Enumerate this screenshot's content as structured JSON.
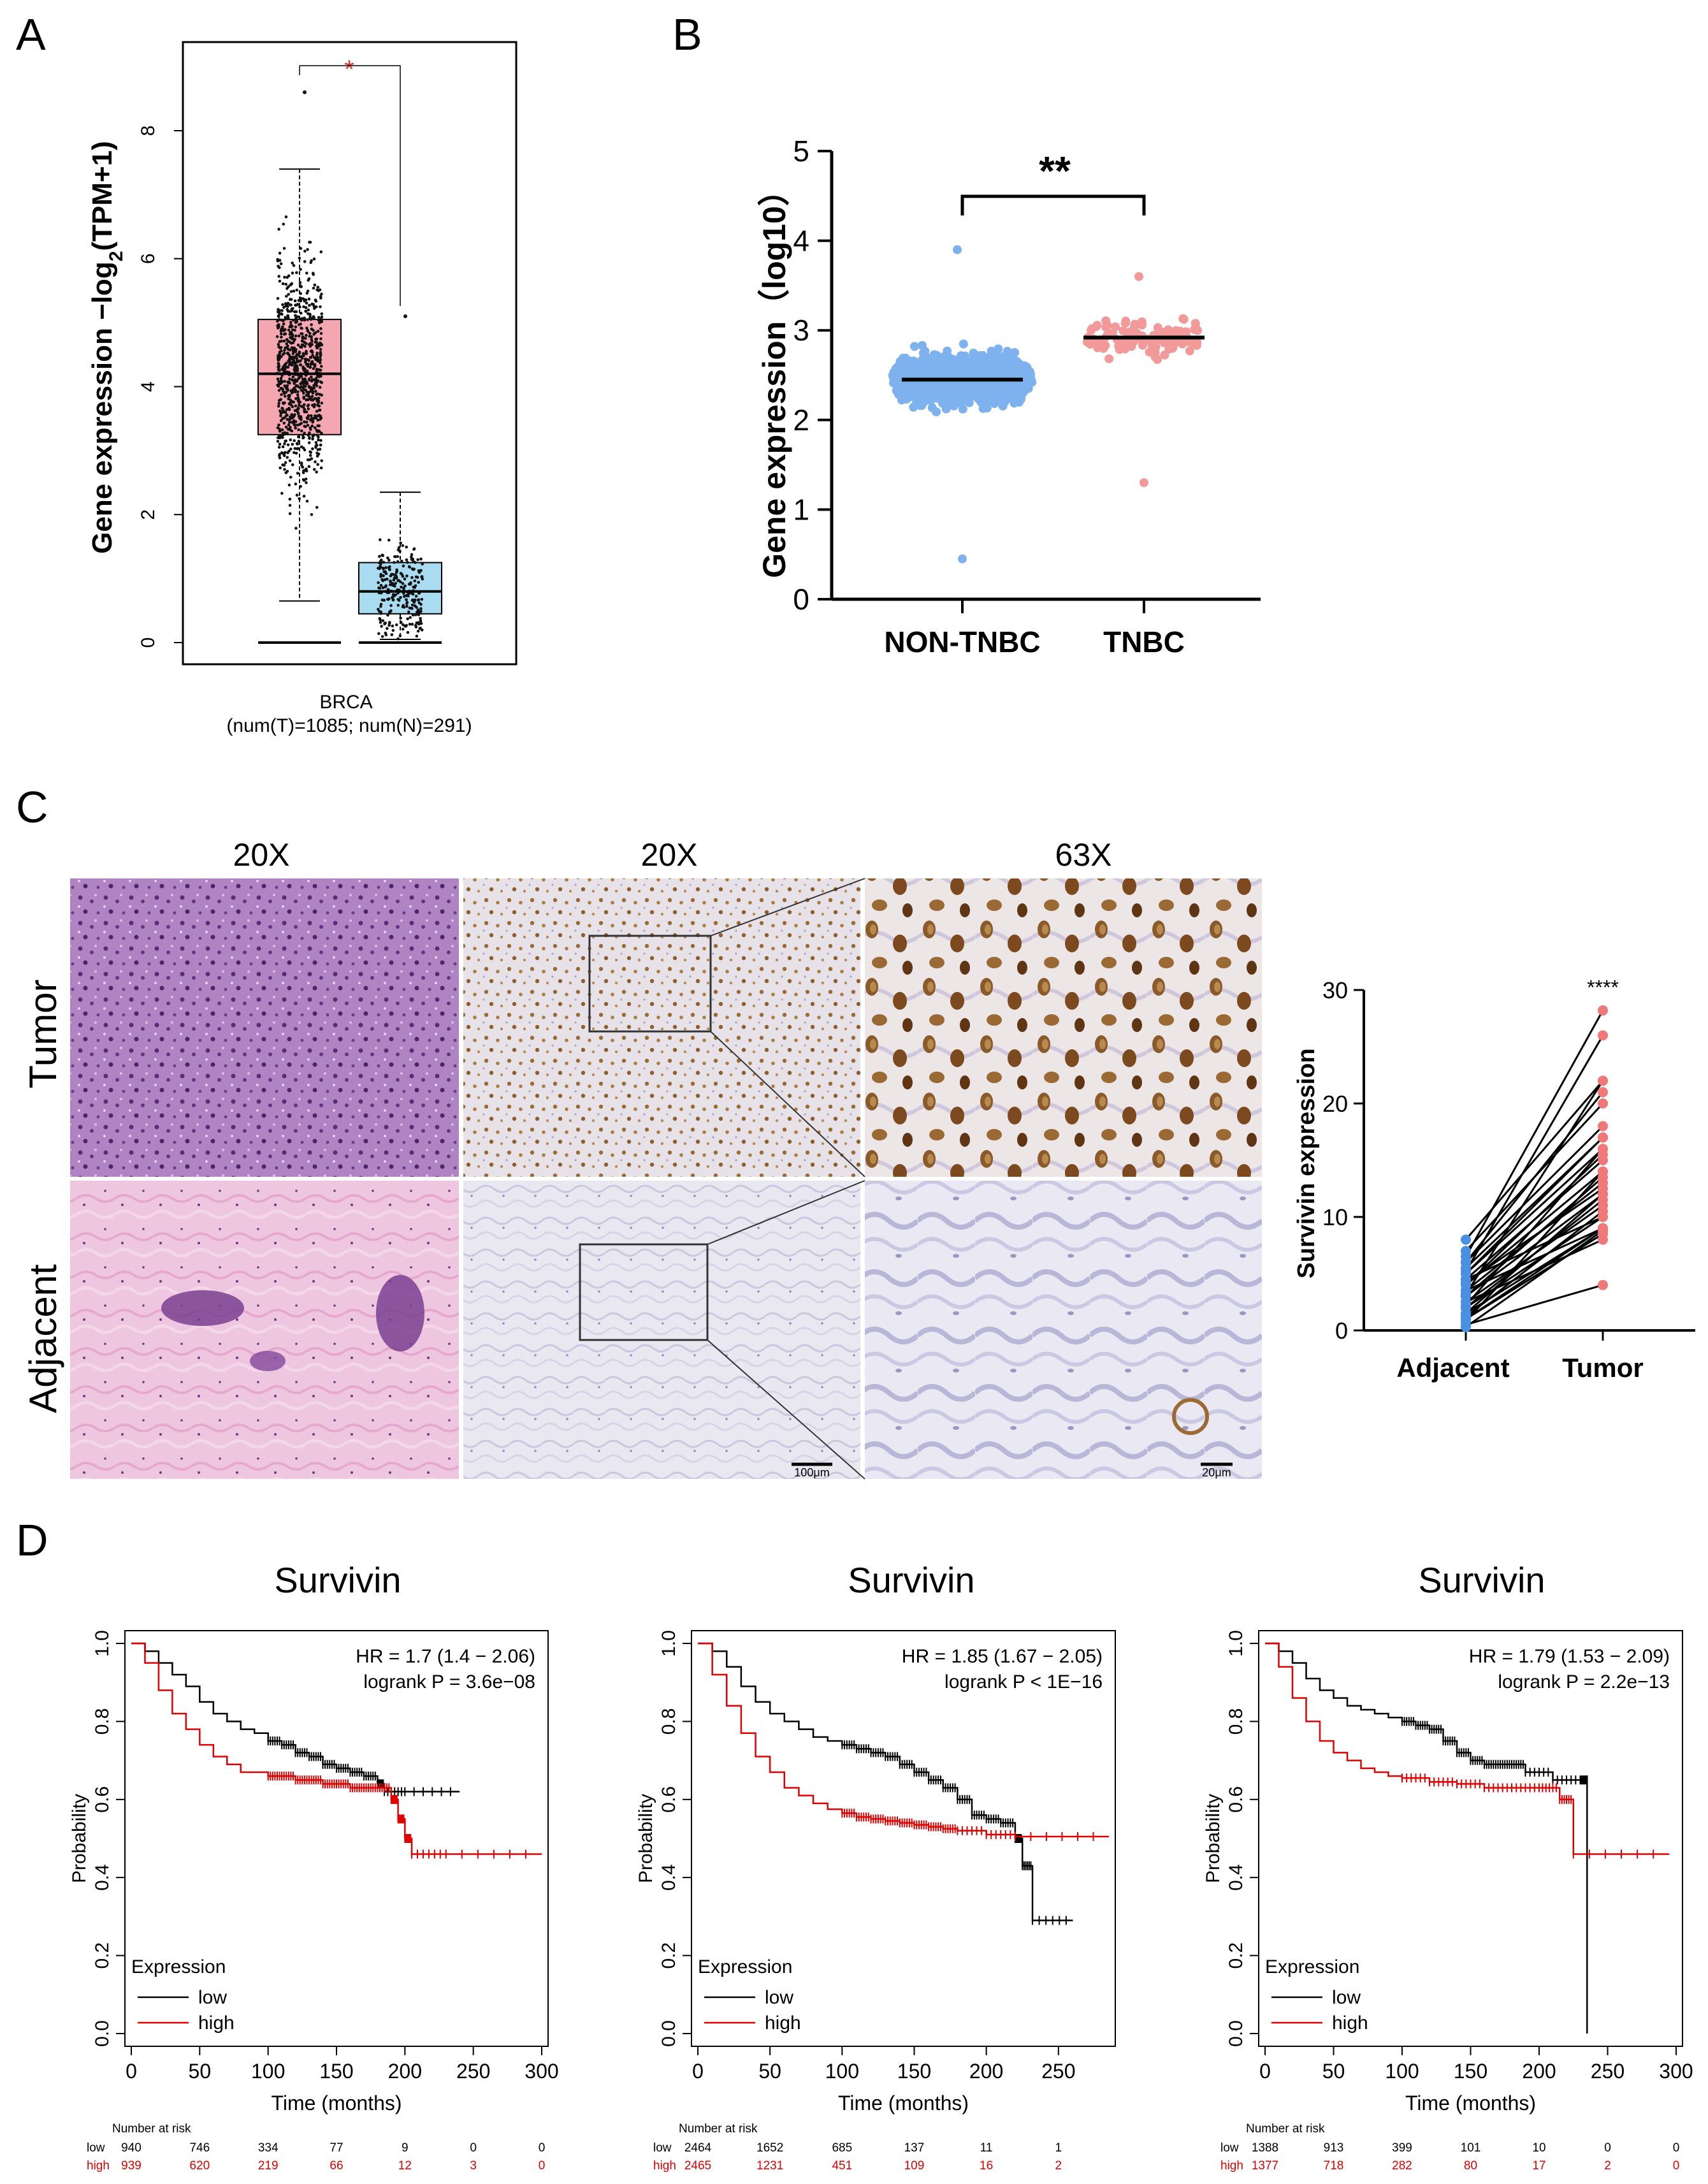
{
  "panel_labels": {
    "a": "A",
    "b": "B",
    "c": "C",
    "d": "D"
  },
  "chart_data": [
    {
      "id": "A",
      "type": "box",
      "ylabel_pre": "Gene expression −log",
      "ylabel_sub": "2",
      "ylabel_post": "(TPM+1)",
      "yticks": [
        0,
        2,
        4,
        6,
        8
      ],
      "ylim": [
        0,
        9.4
      ],
      "significance": "*",
      "xlabel_line1": "BRCA",
      "xlabel_line2": "(num(T)=1085; num(N)=291)",
      "colors": {
        "tumor": "#f4a7b0",
        "normal": "#a9dcf0",
        "star": "#e0342a"
      },
      "boxes": [
        {
          "name": "T",
          "q1": 3.25,
          "median": 4.2,
          "q3": 5.05,
          "whisker_low": 0.65,
          "whisker_high": 7.4,
          "max_outlier": 8.6
        },
        {
          "name": "N",
          "q1": 0.45,
          "median": 0.8,
          "q3": 1.25,
          "whisker_low": 0.05,
          "whisker_high": 2.35,
          "max_outlier": 5.1
        }
      ]
    },
    {
      "id": "B",
      "type": "scatter_dot",
      "ylabel": "Gene expression（log10）",
      "yticks": [
        0,
        1,
        2,
        3,
        4,
        5
      ],
      "ylim": [
        0,
        5
      ],
      "categories": [
        "NON-TNBC",
        "TNBC"
      ],
      "means": [
        2.45,
        2.92
      ],
      "ranges": [
        [
          0.45,
          3.9
        ],
        [
          1.3,
          3.6
        ]
      ],
      "colors": [
        "#7eb2ee",
        "#f29a9a"
      ],
      "significance": "**"
    },
    {
      "id": "C",
      "type": "image_grid_and_paired_plot",
      "col_labels": [
        "20X",
        "20X",
        "63X"
      ],
      "row_labels": [
        "Tumor",
        "Adjacent"
      ],
      "scalebars": [
        "100μm",
        "20μm"
      ],
      "paired": {
        "ylabel": "Survivin expression",
        "categories": [
          "Adjacent",
          "Tumor"
        ],
        "yticks": [
          0,
          10,
          20,
          30
        ],
        "ylim": [
          0,
          30
        ],
        "significance": "****",
        "pairs": [
          [
            0.5,
            4
          ],
          [
            1,
            8.5
          ],
          [
            1.5,
            9
          ],
          [
            2,
            10
          ],
          [
            2.5,
            11
          ],
          [
            3,
            12
          ],
          [
            3.5,
            13
          ],
          [
            4,
            14
          ],
          [
            4.5,
            15
          ],
          [
            5,
            16
          ],
          [
            5.5,
            17
          ],
          [
            6,
            18
          ],
          [
            7,
            20
          ],
          [
            8,
            22
          ],
          [
            1,
            9
          ],
          [
            2,
            11.5
          ],
          [
            3,
            13.5
          ],
          [
            4,
            15.5
          ],
          [
            5,
            17
          ],
          [
            6,
            21
          ],
          [
            2.5,
            8
          ],
          [
            3.5,
            9
          ],
          [
            4.5,
            10
          ],
          [
            1.5,
            12
          ],
          [
            0.8,
            14
          ],
          [
            6.5,
            28.2
          ],
          [
            5.2,
            26
          ],
          [
            3.2,
            22
          ],
          [
            2.2,
            16
          ],
          [
            4.2,
            12.5
          ],
          [
            1.2,
            10.5
          ],
          [
            0.3,
            8.8
          ]
        ]
      }
    },
    {
      "id": "D1",
      "type": "line",
      "title": "Survivin",
      "hr_text": "HR = 1.7 (1.4 − 2.06)",
      "p_text": "logrank P = 3.6e−08",
      "xlabel": "Time (months)",
      "ylabel": "Probability",
      "xticks": [
        0,
        50,
        100,
        150,
        200,
        250,
        300
      ],
      "yticks": [
        0.0,
        0.2,
        0.4,
        0.6,
        0.8,
        1.0
      ],
      "xlim": [
        0,
        300
      ],
      "ylim": [
        0,
        1
      ],
      "legend_title": "Expression",
      "legend": [
        "low",
        "high"
      ],
      "series": [
        {
          "name": "low",
          "color": "#000000",
          "points": [
            [
              0,
              1
            ],
            [
              10,
              0.98
            ],
            [
              20,
              0.95
            ],
            [
              30,
              0.92
            ],
            [
              40,
              0.89
            ],
            [
              50,
              0.85
            ],
            [
              60,
              0.82
            ],
            [
              70,
              0.8
            ],
            [
              80,
              0.78
            ],
            [
              90,
              0.77
            ],
            [
              100,
              0.75
            ],
            [
              110,
              0.74
            ],
            [
              120,
              0.72
            ],
            [
              130,
              0.71
            ],
            [
              140,
              0.69
            ],
            [
              150,
              0.68
            ],
            [
              160,
              0.67
            ],
            [
              170,
              0.66
            ],
            [
              180,
              0.64
            ],
            [
              185,
              0.62
            ],
            [
              200,
              0.62
            ],
            [
              240,
              0.62
            ]
          ]
        },
        {
          "name": "high",
          "color": "#e00000",
          "points": [
            [
              0,
              1
            ],
            [
              10,
              0.95
            ],
            [
              20,
              0.88
            ],
            [
              30,
              0.82
            ],
            [
              40,
              0.78
            ],
            [
              50,
              0.74
            ],
            [
              60,
              0.71
            ],
            [
              70,
              0.69
            ],
            [
              80,
              0.67
            ],
            [
              90,
              0.67
            ],
            [
              100,
              0.66
            ],
            [
              110,
              0.66
            ],
            [
              120,
              0.65
            ],
            [
              130,
              0.65
            ],
            [
              140,
              0.64
            ],
            [
              150,
              0.64
            ],
            [
              160,
              0.63
            ],
            [
              170,
              0.63
            ],
            [
              180,
              0.63
            ],
            [
              190,
              0.6
            ],
            [
              195,
              0.55
            ],
            [
              200,
              0.5
            ],
            [
              205,
              0.46
            ],
            [
              230,
              0.46
            ],
            [
              300,
              0.46
            ]
          ]
        }
      ],
      "risk_header": "Number at risk",
      "risk_table": [
        {
          "label": "low",
          "values": [
            "940",
            "746",
            "334",
            "77",
            "9",
            "0",
            "0"
          ]
        },
        {
          "label": "high",
          "values": [
            "939",
            "620",
            "219",
            "66",
            "12",
            "3",
            "0"
          ]
        }
      ]
    },
    {
      "id": "D2",
      "type": "line",
      "title": "Survivin",
      "hr_text": "HR = 1.85 (1.67 − 2.05)",
      "p_text": "logrank P < 1E−16",
      "xlabel": "Time (months)",
      "ylabel": "Probability",
      "xticks": [
        0,
        50,
        100,
        150,
        200,
        250
      ],
      "yticks": [
        0.0,
        0.2,
        0.4,
        0.6,
        0.8,
        1.0
      ],
      "xlim": [
        0,
        285
      ],
      "ylim": [
        0,
        1
      ],
      "legend_title": "Expression",
      "legend": [
        "low",
        "high"
      ],
      "series": [
        {
          "name": "low",
          "color": "#000000",
          "points": [
            [
              0,
              1
            ],
            [
              10,
              0.98
            ],
            [
              20,
              0.94
            ],
            [
              30,
              0.89
            ],
            [
              40,
              0.85
            ],
            [
              50,
              0.82
            ],
            [
              60,
              0.8
            ],
            [
              70,
              0.78
            ],
            [
              80,
              0.76
            ],
            [
              90,
              0.75
            ],
            [
              100,
              0.74
            ],
            [
              110,
              0.73
            ],
            [
              120,
              0.72
            ],
            [
              130,
              0.71
            ],
            [
              140,
              0.69
            ],
            [
              150,
              0.67
            ],
            [
              160,
              0.65
            ],
            [
              170,
              0.63
            ],
            [
              180,
              0.6
            ],
            [
              190,
              0.56
            ],
            [
              200,
              0.55
            ],
            [
              210,
              0.54
            ],
            [
              220,
              0.5
            ],
            [
              225,
              0.43
            ],
            [
              232,
              0.29
            ],
            [
              260,
              0.29
            ]
          ]
        },
        {
          "name": "high",
          "color": "#e00000",
          "points": [
            [
              0,
              1
            ],
            [
              10,
              0.92
            ],
            [
              20,
              0.84
            ],
            [
              30,
              0.77
            ],
            [
              40,
              0.71
            ],
            [
              50,
              0.67
            ],
            [
              60,
              0.63
            ],
            [
              70,
              0.61
            ],
            [
              80,
              0.59
            ],
            [
              90,
              0.575
            ],
            [
              100,
              0.565
            ],
            [
              110,
              0.555
            ],
            [
              120,
              0.55
            ],
            [
              130,
              0.545
            ],
            [
              140,
              0.54
            ],
            [
              150,
              0.535
            ],
            [
              160,
              0.53
            ],
            [
              170,
              0.525
            ],
            [
              180,
              0.52
            ],
            [
              200,
              0.51
            ],
            [
              220,
              0.505
            ],
            [
              285,
              0.505
            ]
          ]
        }
      ],
      "risk_header": "Number at risk",
      "risk_table": [
        {
          "label": "low",
          "values": [
            "2464",
            "1652",
            "685",
            "137",
            "11",
            "1"
          ]
        },
        {
          "label": "high",
          "values": [
            "2465",
            "1231",
            "451",
            "109",
            "16",
            "2"
          ]
        }
      ]
    },
    {
      "id": "D3",
      "type": "line",
      "title": "Survivin",
      "hr_text": "HR = 1.79 (1.53 − 2.09)",
      "p_text": "logrank P = 2.2e−13",
      "xlabel": "Time (months)",
      "ylabel": "Probability",
      "xticks": [
        0,
        50,
        100,
        150,
        200,
        250,
        300
      ],
      "yticks": [
        0.0,
        0.2,
        0.4,
        0.6,
        0.8,
        1.0
      ],
      "xlim": [
        0,
        300
      ],
      "ylim": [
        0,
        1
      ],
      "legend_title": "Expression",
      "legend": [
        "low",
        "high"
      ],
      "series": [
        {
          "name": "low",
          "color": "#000000",
          "points": [
            [
              0,
              1
            ],
            [
              10,
              0.98
            ],
            [
              20,
              0.95
            ],
            [
              30,
              0.91
            ],
            [
              40,
              0.88
            ],
            [
              50,
              0.86
            ],
            [
              60,
              0.84
            ],
            [
              70,
              0.83
            ],
            [
              80,
              0.82
            ],
            [
              90,
              0.81
            ],
            [
              100,
              0.8
            ],
            [
              110,
              0.79
            ],
            [
              120,
              0.78
            ],
            [
              130,
              0.75
            ],
            [
              140,
              0.72
            ],
            [
              150,
              0.7
            ],
            [
              160,
              0.69
            ],
            [
              170,
              0.69
            ],
            [
              180,
              0.69
            ],
            [
              190,
              0.67
            ],
            [
              210,
              0.65
            ],
            [
              230,
              0.65
            ],
            [
              235,
              0.65
            ],
            [
              235,
              0.0
            ]
          ]
        },
        {
          "name": "high",
          "color": "#e00000",
          "points": [
            [
              0,
              1
            ],
            [
              10,
              0.94
            ],
            [
              20,
              0.86
            ],
            [
              30,
              0.8
            ],
            [
              40,
              0.75
            ],
            [
              50,
              0.72
            ],
            [
              60,
              0.7
            ],
            [
              70,
              0.68
            ],
            [
              80,
              0.67
            ],
            [
              90,
              0.66
            ],
            [
              100,
              0.655
            ],
            [
              120,
              0.645
            ],
            [
              140,
              0.64
            ],
            [
              160,
              0.63
            ],
            [
              180,
              0.63
            ],
            [
              200,
              0.63
            ],
            [
              215,
              0.6
            ],
            [
              225,
              0.46
            ],
            [
              295,
              0.46
            ]
          ]
        }
      ],
      "risk_header": "Number at risk",
      "risk_table": [
        {
          "label": "low",
          "values": [
            "1388",
            "913",
            "399",
            "101",
            "10",
            "0",
            "0"
          ]
        },
        {
          "label": "high",
          "values": [
            "1377",
            "718",
            "282",
            "80",
            "17",
            "2",
            "0"
          ]
        }
      ]
    }
  ]
}
